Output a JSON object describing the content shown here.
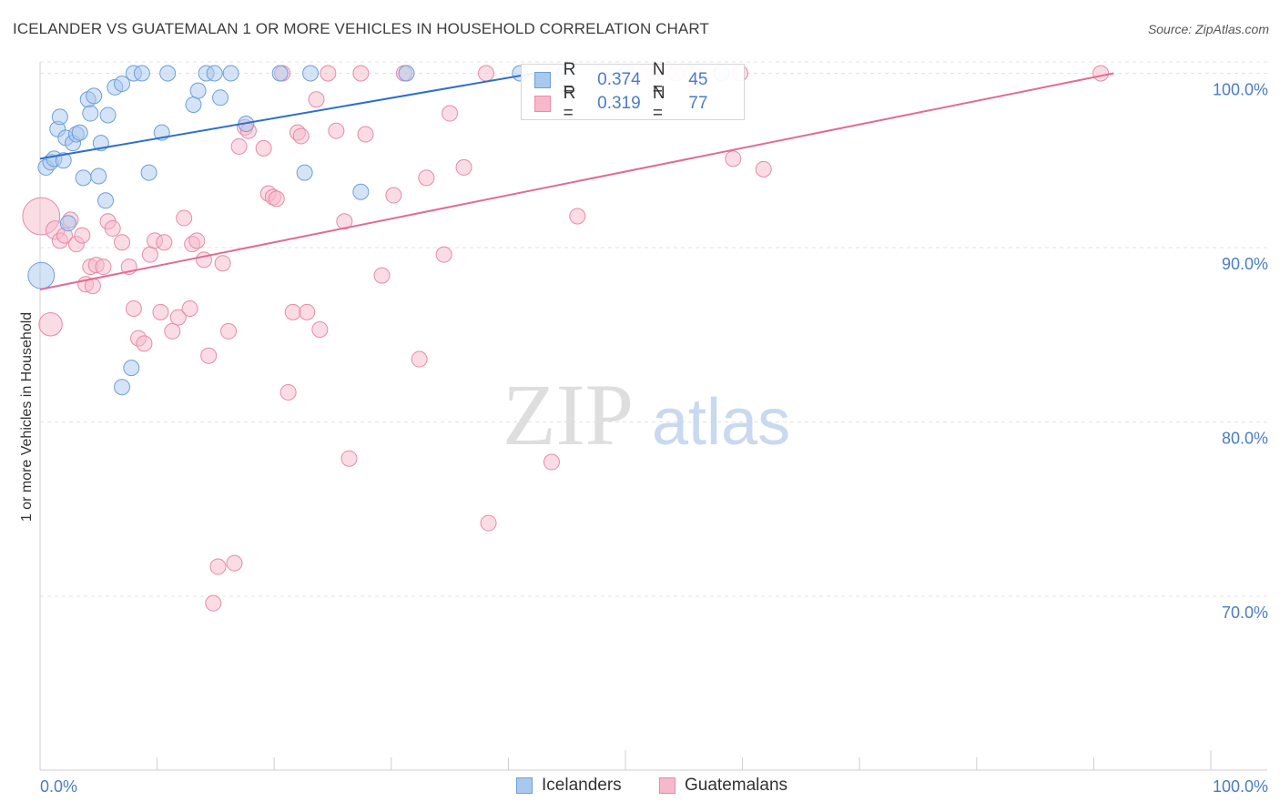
{
  "title": "ICELANDER VS GUATEMALAN 1 OR MORE VEHICLES IN HOUSEHOLD CORRELATION CHART",
  "source": "Source: ZipAtlas.com",
  "watermark": {
    "zip": "ZIP",
    "atlas": "atlas"
  },
  "colors": {
    "blue_fill": "#a9c8ee",
    "blue_stroke": "#6d9fdc",
    "blue_line": "#2f6fcf",
    "pink_fill": "#f6b9cb",
    "pink_stroke": "#e88aa8",
    "pink_line": "#e26b94",
    "axis_text": "#4a7cc7",
    "grid": "#e3e3e3"
  },
  "legend": {
    "rows": [
      {
        "r_label": "R =",
        "r_value": "0.374",
        "n_label": "N =",
        "n_value": "45"
      },
      {
        "r_label": "R =",
        "r_value": "0.319",
        "n_label": "N =",
        "n_value": "77"
      }
    ]
  },
  "bottom_legend": {
    "icelanders": "Icelanders",
    "guatemalans": "Guatemalans"
  },
  "chart_data": {
    "type": "scatter",
    "title": "ICELANDER VS GUATEMALAN 1 OR MORE VEHICLES IN HOUSEHOLD CORRELATION CHART",
    "xlabel": "",
    "ylabel": "1 or more Vehicles in Household",
    "x_tick_labels": [
      "0.0%",
      "100.0%"
    ],
    "y_tick_labels": [
      "100.0%",
      "90.0%",
      "80.0%",
      "70.0%"
    ],
    "y_ticks": [
      100,
      90,
      80,
      70
    ],
    "xlim": [
      0,
      100
    ],
    "ylim": [
      59,
      101.5
    ],
    "grid": true,
    "legend_position": "top-center",
    "series": [
      {
        "name": "Icelanders",
        "r": 0.374,
        "n": 45,
        "trend": {
          "x0": 0,
          "y0": 95.1,
          "x1": 42.2,
          "y1": 100.0
        },
        "points": [
          {
            "x": 0.5,
            "y": 94.6,
            "s": 1
          },
          {
            "x": 0.9,
            "y": 94.9,
            "s": 1
          },
          {
            "x": 1.2,
            "y": 95.1,
            "s": 1
          },
          {
            "x": 1.5,
            "y": 96.8,
            "s": 1
          },
          {
            "x": 1.7,
            "y": 97.5,
            "s": 1
          },
          {
            "x": 2.0,
            "y": 95.0,
            "s": 1
          },
          {
            "x": 2.2,
            "y": 96.3,
            "s": 1
          },
          {
            "x": 2.4,
            "y": 91.4,
            "s": 1
          },
          {
            "x": 2.8,
            "y": 96.0,
            "s": 1
          },
          {
            "x": 3.1,
            "y": 96.5,
            "s": 1
          },
          {
            "x": 3.4,
            "y": 96.6,
            "s": 1
          },
          {
            "x": 3.7,
            "y": 94.0,
            "s": 1
          },
          {
            "x": 4.1,
            "y": 98.5,
            "s": 1
          },
          {
            "x": 4.3,
            "y": 97.7,
            "s": 1
          },
          {
            "x": 4.6,
            "y": 98.7,
            "s": 1
          },
          {
            "x": 5.0,
            "y": 94.1,
            "s": 1
          },
          {
            "x": 5.2,
            "y": 96.0,
            "s": 1
          },
          {
            "x": 5.6,
            "y": 92.7,
            "s": 1
          },
          {
            "x": 5.8,
            "y": 97.6,
            "s": 1
          },
          {
            "x": 6.4,
            "y": 99.2,
            "s": 1
          },
          {
            "x": 7.0,
            "y": 99.4,
            "s": 1
          },
          {
            "x": 7.0,
            "y": 82.0,
            "s": 1
          },
          {
            "x": 7.8,
            "y": 83.1,
            "s": 1
          },
          {
            "x": 8.0,
            "y": 100.0,
            "s": 1
          },
          {
            "x": 8.7,
            "y": 100.0,
            "s": 1
          },
          {
            "x": 9.3,
            "y": 94.3,
            "s": 1
          },
          {
            "x": 10.4,
            "y": 96.6,
            "s": 1
          },
          {
            "x": 10.9,
            "y": 100.0,
            "s": 1
          },
          {
            "x": 13.1,
            "y": 98.2,
            "s": 1
          },
          {
            "x": 13.5,
            "y": 99.0,
            "s": 1
          },
          {
            "x": 14.2,
            "y": 100.0,
            "s": 1
          },
          {
            "x": 14.9,
            "y": 100.0,
            "s": 1
          },
          {
            "x": 15.4,
            "y": 98.6,
            "s": 1
          },
          {
            "x": 16.3,
            "y": 100.0,
            "s": 1
          },
          {
            "x": 17.6,
            "y": 97.1,
            "s": 1
          },
          {
            "x": 20.5,
            "y": 100.0,
            "s": 1
          },
          {
            "x": 22.6,
            "y": 94.3,
            "s": 1
          },
          {
            "x": 23.1,
            "y": 100.0,
            "s": 1
          },
          {
            "x": 27.4,
            "y": 93.2,
            "s": 1
          },
          {
            "x": 31.3,
            "y": 100.0,
            "s": 1
          },
          {
            "x": 41.0,
            "y": 100.0,
            "s": 1
          },
          {
            "x": 44.8,
            "y": 100.0,
            "s": 1
          },
          {
            "x": 50.1,
            "y": 100.0,
            "s": 1
          },
          {
            "x": 58.2,
            "y": 100.0,
            "s": 1
          },
          {
            "x": 0.1,
            "y": 88.4,
            "s": 1.7
          }
        ]
      },
      {
        "name": "Guatemalans",
        "r": 0.319,
        "n": 77,
        "trend": {
          "x0": 0,
          "y0": 87.6,
          "x1": 91.7,
          "y1": 100.0
        },
        "points": [
          {
            "x": 0.1,
            "y": 91.8,
            "s": 2.4
          },
          {
            "x": 0.9,
            "y": 85.6,
            "s": 1.5
          },
          {
            "x": 1.3,
            "y": 91.0,
            "s": 1.2
          },
          {
            "x": 1.7,
            "y": 90.4,
            "s": 1
          },
          {
            "x": 2.1,
            "y": 90.7,
            "s": 1
          },
          {
            "x": 2.6,
            "y": 91.6,
            "s": 1
          },
          {
            "x": 3.1,
            "y": 90.2,
            "s": 1
          },
          {
            "x": 3.6,
            "y": 90.7,
            "s": 1
          },
          {
            "x": 3.9,
            "y": 87.9,
            "s": 1
          },
          {
            "x": 4.3,
            "y": 88.9,
            "s": 1
          },
          {
            "x": 4.5,
            "y": 87.8,
            "s": 1
          },
          {
            "x": 4.8,
            "y": 89.0,
            "s": 1
          },
          {
            "x": 5.4,
            "y": 88.9,
            "s": 1
          },
          {
            "x": 5.8,
            "y": 91.5,
            "s": 1
          },
          {
            "x": 6.2,
            "y": 91.1,
            "s": 1
          },
          {
            "x": 7.0,
            "y": 90.3,
            "s": 1
          },
          {
            "x": 7.6,
            "y": 88.9,
            "s": 1
          },
          {
            "x": 8.0,
            "y": 86.5,
            "s": 1
          },
          {
            "x": 8.4,
            "y": 84.8,
            "s": 1
          },
          {
            "x": 8.9,
            "y": 84.5,
            "s": 1
          },
          {
            "x": 9.4,
            "y": 89.6,
            "s": 1
          },
          {
            "x": 9.8,
            "y": 90.4,
            "s": 1
          },
          {
            "x": 10.3,
            "y": 86.3,
            "s": 1
          },
          {
            "x": 10.6,
            "y": 90.3,
            "s": 1
          },
          {
            "x": 11.3,
            "y": 85.2,
            "s": 1
          },
          {
            "x": 11.8,
            "y": 86.0,
            "s": 1
          },
          {
            "x": 12.3,
            "y": 91.7,
            "s": 1
          },
          {
            "x": 12.8,
            "y": 86.5,
            "s": 1
          },
          {
            "x": 13.0,
            "y": 90.2,
            "s": 1
          },
          {
            "x": 13.4,
            "y": 90.4,
            "s": 1
          },
          {
            "x": 14.0,
            "y": 89.3,
            "s": 1
          },
          {
            "x": 14.4,
            "y": 83.8,
            "s": 1
          },
          {
            "x": 14.8,
            "y": 69.6,
            "s": 1
          },
          {
            "x": 15.2,
            "y": 71.7,
            "s": 1
          },
          {
            "x": 15.6,
            "y": 89.1,
            "s": 1
          },
          {
            "x": 16.1,
            "y": 85.2,
            "s": 1
          },
          {
            "x": 16.6,
            "y": 71.9,
            "s": 1
          },
          {
            "x": 17.0,
            "y": 95.8,
            "s": 1
          },
          {
            "x": 17.5,
            "y": 96.9,
            "s": 1
          },
          {
            "x": 17.8,
            "y": 96.7,
            "s": 1
          },
          {
            "x": 19.1,
            "y": 95.7,
            "s": 1
          },
          {
            "x": 19.5,
            "y": 93.1,
            "s": 1
          },
          {
            "x": 19.9,
            "y": 92.9,
            "s": 1
          },
          {
            "x": 20.2,
            "y": 92.8,
            "s": 1
          },
          {
            "x": 20.7,
            "y": 100.0,
            "s": 1
          },
          {
            "x": 21.2,
            "y": 81.7,
            "s": 1
          },
          {
            "x": 21.6,
            "y": 86.3,
            "s": 1
          },
          {
            "x": 22.0,
            "y": 96.6,
            "s": 1
          },
          {
            "x": 22.3,
            "y": 96.4,
            "s": 1
          },
          {
            "x": 22.8,
            "y": 86.3,
            "s": 1
          },
          {
            "x": 23.6,
            "y": 98.5,
            "s": 1
          },
          {
            "x": 23.9,
            "y": 85.3,
            "s": 1
          },
          {
            "x": 24.6,
            "y": 100.0,
            "s": 1
          },
          {
            "x": 25.3,
            "y": 96.7,
            "s": 1
          },
          {
            "x": 26.0,
            "y": 91.5,
            "s": 1
          },
          {
            "x": 26.4,
            "y": 77.9,
            "s": 1
          },
          {
            "x": 27.4,
            "y": 100.0,
            "s": 1
          },
          {
            "x": 27.8,
            "y": 96.5,
            "s": 1
          },
          {
            "x": 29.2,
            "y": 88.4,
            "s": 1
          },
          {
            "x": 30.2,
            "y": 93.0,
            "s": 1
          },
          {
            "x": 31.1,
            "y": 100.0,
            "s": 1
          },
          {
            "x": 32.4,
            "y": 83.6,
            "s": 1
          },
          {
            "x": 33.0,
            "y": 94.0,
            "s": 1
          },
          {
            "x": 34.5,
            "y": 89.6,
            "s": 1
          },
          {
            "x": 35.0,
            "y": 97.7,
            "s": 1
          },
          {
            "x": 36.2,
            "y": 94.6,
            "s": 1
          },
          {
            "x": 38.1,
            "y": 100.0,
            "s": 1
          },
          {
            "x": 38.3,
            "y": 74.2,
            "s": 1
          },
          {
            "x": 43.7,
            "y": 77.7,
            "s": 1
          },
          {
            "x": 45.9,
            "y": 91.8,
            "s": 1
          },
          {
            "x": 52.4,
            "y": 100.0,
            "s": 1
          },
          {
            "x": 54.3,
            "y": 100.0,
            "s": 1
          },
          {
            "x": 55.7,
            "y": 100.0,
            "s": 1
          },
          {
            "x": 59.2,
            "y": 95.1,
            "s": 1
          },
          {
            "x": 59.8,
            "y": 100.0,
            "s": 1
          },
          {
            "x": 61.8,
            "y": 94.5,
            "s": 1
          },
          {
            "x": 90.6,
            "y": 100.0,
            "s": 1
          }
        ]
      }
    ]
  }
}
